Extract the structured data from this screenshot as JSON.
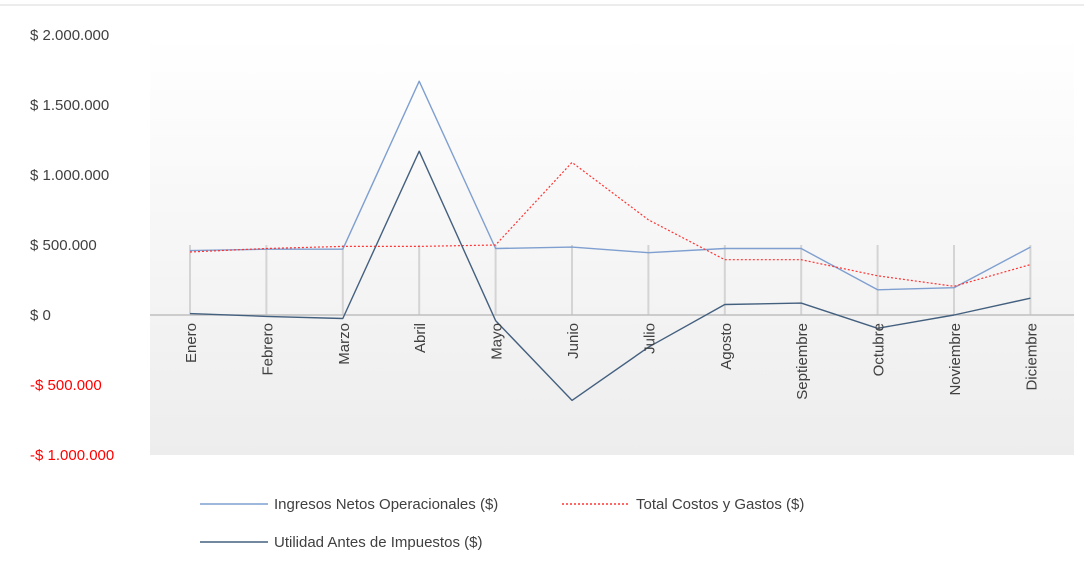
{
  "chart_data": {
    "type": "line",
    "title": "",
    "xlabel": "",
    "ylabel": "",
    "categories": [
      "Enero",
      "Febrero",
      "Marzo",
      "Abril",
      "Mayo",
      "Junio",
      "Julio",
      "Agosto",
      "Septiembre",
      "Octubre",
      "Noviembre",
      "Diciembre"
    ],
    "ylim": [
      -1000000,
      2000000
    ],
    "y_ticks": [
      {
        "value": 2000000,
        "label": "$ 2.000.000"
      },
      {
        "value": 1500000,
        "label": "$ 1.500.000"
      },
      {
        "value": 1000000,
        "label": "$ 1.000.000"
      },
      {
        "value": 500000,
        "label": "$ 500.000"
      },
      {
        "value": 0,
        "label": "$ 0"
      },
      {
        "value": -500000,
        "label": "-$ 500.000"
      },
      {
        "value": -1000000,
        "label": "-$ 1.000.000"
      }
    ],
    "negative_tick_color": "#ff0000",
    "grid": "vertical",
    "legend_position": "bottom",
    "series": [
      {
        "name": "Ingresos Netos Operacionales ($)",
        "color": "#7f9fd0",
        "style": "solid",
        "values": [
          460000,
          470000,
          470000,
          1670000,
          475000,
          485000,
          445000,
          475000,
          475000,
          180000,
          195000,
          485000
        ]
      },
      {
        "name": "Total Costos y Gastos ($)",
        "color": "#ff3333",
        "style": "dotted",
        "values": [
          450000,
          475000,
          490000,
          490000,
          500000,
          1090000,
          680000,
          395000,
          395000,
          280000,
          205000,
          360000
        ]
      },
      {
        "name": "Utilidad Antes de Impuestos ($)",
        "color": "#44607f",
        "style": "solid",
        "values": [
          10000,
          -10000,
          -25000,
          1170000,
          -40000,
          -610000,
          -230000,
          75000,
          85000,
          -95000,
          0,
          120000
        ]
      }
    ]
  }
}
